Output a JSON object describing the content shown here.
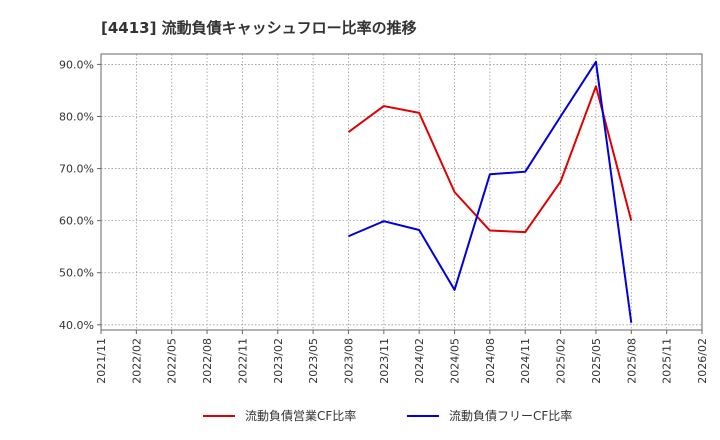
{
  "chart_data": {
    "type": "line",
    "title": "[4413]  流動負債キャッシュフロー比率の推移",
    "xlabel": "",
    "ylabel": "",
    "ylim": [
      39,
      92
    ],
    "yticks": [
      40,
      50,
      60,
      70,
      80,
      90
    ],
    "ytick_labels": [
      "40.0%",
      "50.0%",
      "60.0%",
      "70.0%",
      "80.0%",
      "90.0%"
    ],
    "xticks": [
      "2021/11",
      "2022/02",
      "2022/05",
      "2022/08",
      "2022/11",
      "2023/02",
      "2023/05",
      "2023/08",
      "2023/11",
      "2024/02",
      "2024/05",
      "2024/08",
      "2024/11",
      "2025/02",
      "2025/05",
      "2025/08",
      "2025/11",
      "2026/02"
    ],
    "grid": true,
    "legend_position": "bottom",
    "series": [
      {
        "name": "流動負債営業CF比率",
        "color": "#e00000",
        "points": [
          {
            "x": "2023/08",
            "y": 77.0
          },
          {
            "x": "2023/11",
            "y": 82.0
          },
          {
            "x": "2024/02",
            "y": 80.7
          },
          {
            "x": "2024/05",
            "y": 65.5
          },
          {
            "x": "2024/08",
            "y": 58.1
          },
          {
            "x": "2024/11",
            "y": 57.8
          },
          {
            "x": "2025/02",
            "y": 67.5
          },
          {
            "x": "2025/05",
            "y": 85.8
          },
          {
            "x": "2025/08",
            "y": 60.0
          }
        ]
      },
      {
        "name": "流動負債フリーCF比率",
        "color": "#0000dd",
        "points": [
          {
            "x": "2023/08",
            "y": 57.0
          },
          {
            "x": "2023/11",
            "y": 59.9
          },
          {
            "x": "2024/02",
            "y": 58.2
          },
          {
            "x": "2024/05",
            "y": 46.7
          },
          {
            "x": "2024/08",
            "y": 68.9
          },
          {
            "x": "2024/11",
            "y": 69.4
          },
          {
            "x": "2025/02",
            "y": 80.0
          },
          {
            "x": "2025/05",
            "y": 90.5
          },
          {
            "x": "2025/08",
            "y": 40.4
          }
        ]
      }
    ]
  }
}
